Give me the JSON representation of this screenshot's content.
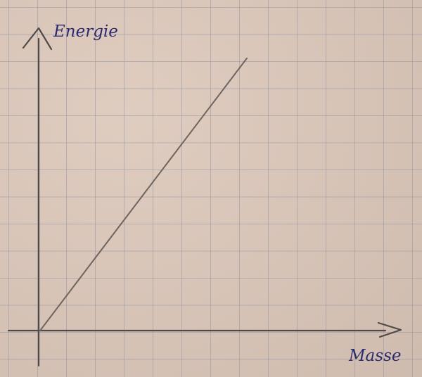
{
  "chart_data": {
    "type": "line",
    "title": "",
    "xlabel": "Masse",
    "ylabel": "Energie",
    "xlim": [
      0,
      1
    ],
    "ylim": [
      0,
      1
    ],
    "grid": true,
    "series": [
      {
        "x": [
          0,
          0.6
        ],
        "y": [
          0,
          0.98
        ]
      }
    ]
  },
  "colors": {
    "paper": "#dcc7b9",
    "grid": "#9696a0",
    "axis": "#4f4a47",
    "line": "#6e6560",
    "label_ink": "#2b2a6e"
  }
}
